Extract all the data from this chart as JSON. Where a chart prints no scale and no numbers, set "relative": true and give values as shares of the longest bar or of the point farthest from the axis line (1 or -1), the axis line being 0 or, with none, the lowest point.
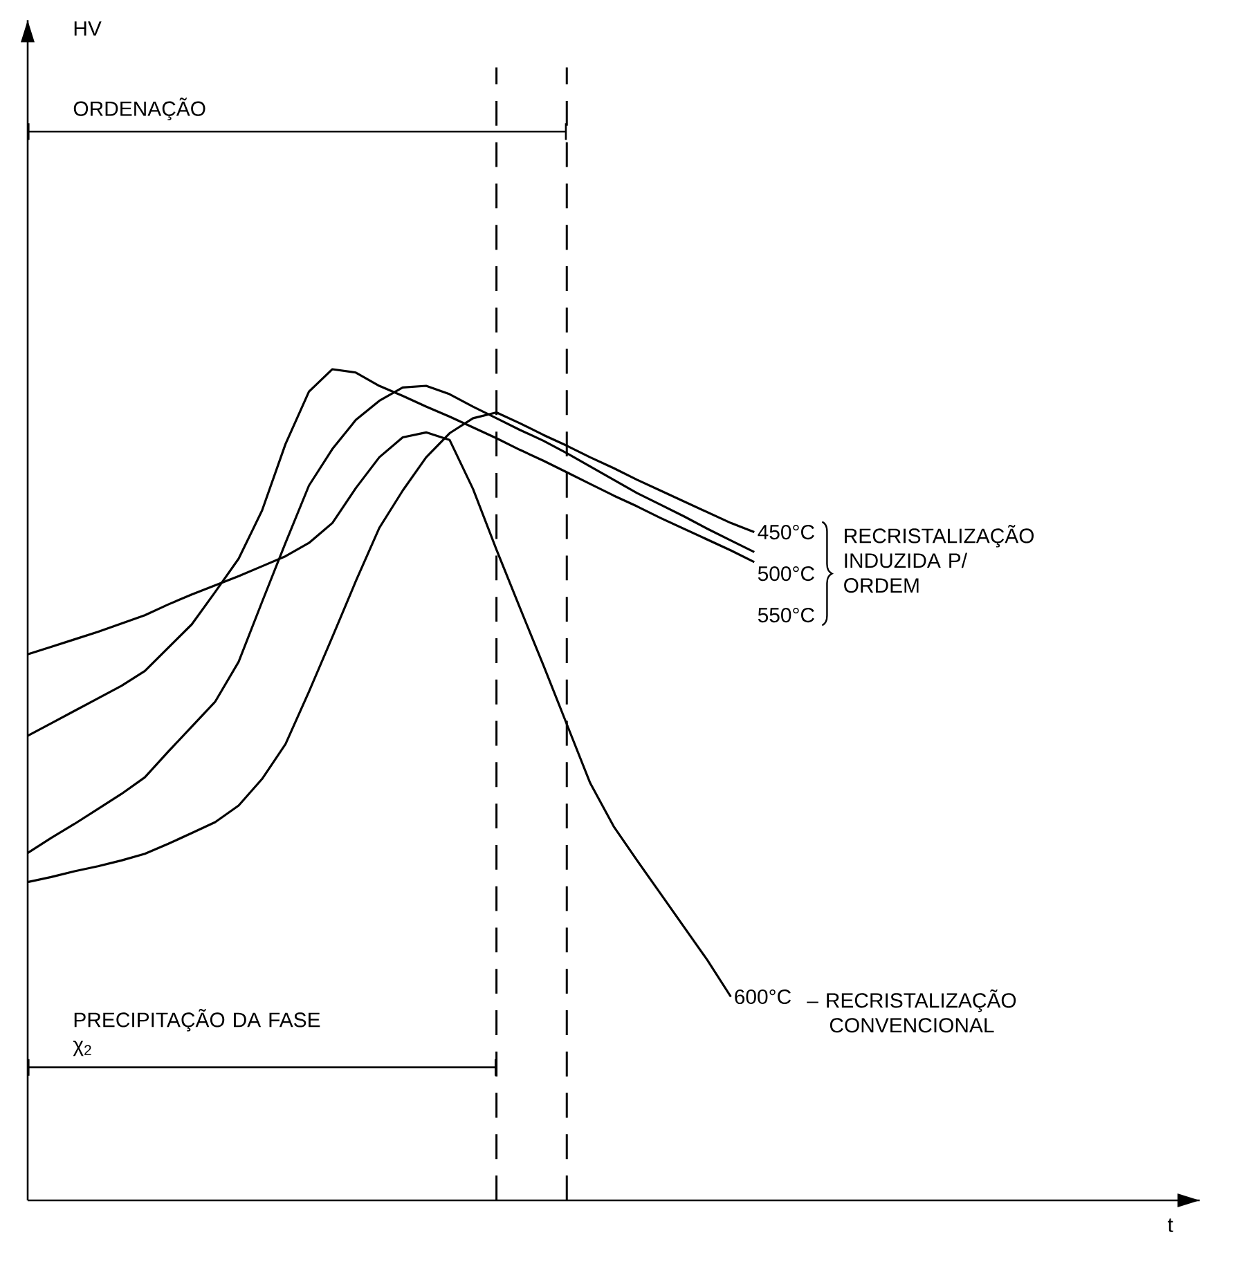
{
  "chart_data": {
    "type": "line",
    "relative": true,
    "xlabel": "t",
    "categories": [
      null,
      null,
      null,
      null,
      null,
      null,
      null,
      null,
      null,
      null,
      null,
      null,
      null,
      null,
      null,
      null,
      null,
      null,
      null,
      null,
      null,
      null,
      null,
      null,
      null,
      null,
      null,
      null,
      null,
      null,
      null,
      null,
      null,
      null,
      null,
      null,
      null,
      null,
      null,
      null,
      null,
      null,
      null,
      null,
      null,
      null,
      null,
      null,
      null,
      null,
      null
    ],
    "series": [
      {
        "name": "450°C",
        "color": "#000000",
        "values": [
          0.383,
          0.389,
          0.396,
          0.402,
          0.409,
          0.417,
          0.429,
          0.442,
          0.455,
          0.475,
          0.507,
          0.549,
          0.612,
          0.678,
          0.745,
          0.809,
          0.854,
          0.894,
          0.923,
          0.941,
          0.948,
          0.935,
          0.921,
          0.908,
          0.894,
          0.881,
          0.867,
          0.854,
          0.841,
          0.828,
          0.815,
          0.804,
          null,
          null,
          null,
          null,
          null,
          null,
          null,
          null,
          null,
          null,
          null,
          null,
          null,
          null,
          null,
          null,
          null,
          null,
          null
        ]
      },
      {
        "name": "500°C",
        "color": "#000000",
        "values": [
          0.418,
          0.436,
          0.453,
          0.471,
          0.489,
          0.509,
          0.54,
          0.57,
          0.6,
          0.648,
          0.72,
          0.791,
          0.86,
          0.904,
          0.939,
          0.962,
          0.978,
          0.98,
          0.97,
          0.955,
          0.941,
          0.927,
          0.914,
          0.899,
          0.883,
          0.867,
          0.851,
          0.837,
          0.823,
          0.808,
          0.794,
          0.78,
          null,
          null,
          null,
          null,
          null,
          null,
          null,
          null,
          null,
          null,
          null,
          null,
          null,
          null,
          null,
          null,
          null,
          null,
          null
        ]
      },
      {
        "name": "550°C",
        "color": "#000000",
        "values": [
          0.559,
          0.574,
          0.589,
          0.604,
          0.619,
          0.637,
          0.665,
          0.693,
          0.732,
          0.772,
          0.83,
          0.91,
          0.973,
          1.0,
          0.996,
          0.98,
          0.968,
          0.955,
          0.943,
          0.93,
          0.917,
          0.903,
          0.89,
          0.876,
          0.862,
          0.848,
          0.835,
          0.821,
          0.808,
          0.795,
          0.782,
          0.768,
          null,
          null,
          null,
          null,
          null,
          null,
          null,
          null,
          null,
          null,
          null,
          null,
          null,
          null,
          null,
          null,
          null,
          null,
          null
        ]
      },
      {
        "name": "600°C",
        "color": "#000000",
        "values": [
          0.657,
          0.666,
          0.675,
          0.684,
          0.694,
          0.704,
          0.717,
          0.729,
          0.74,
          0.751,
          0.763,
          0.775,
          0.791,
          0.815,
          0.857,
          0.894,
          0.918,
          0.924,
          0.915,
          0.856,
          0.783,
          0.713,
          0.644,
          0.573,
          0.502,
          0.45,
          0.409,
          0.369,
          0.329,
          0.289,
          0.245,
          null,
          null,
          null,
          null,
          null,
          null,
          null,
          null,
          null,
          null,
          null,
          null,
          null,
          null,
          null,
          null,
          null,
          null,
          null,
          null
        ]
      }
    ],
    "annotations": [
      "HV",
      "ORDENAÇÃO",
      "PRECIPITAÇÃO DA FASE χ$_{2}$",
      "RECRISTALIZAÇÃO INDUZIDA P/ ORDEM",
      "– RECRISTALIZAÇÃO CONVENCIONAL"
    ]
  }
}
